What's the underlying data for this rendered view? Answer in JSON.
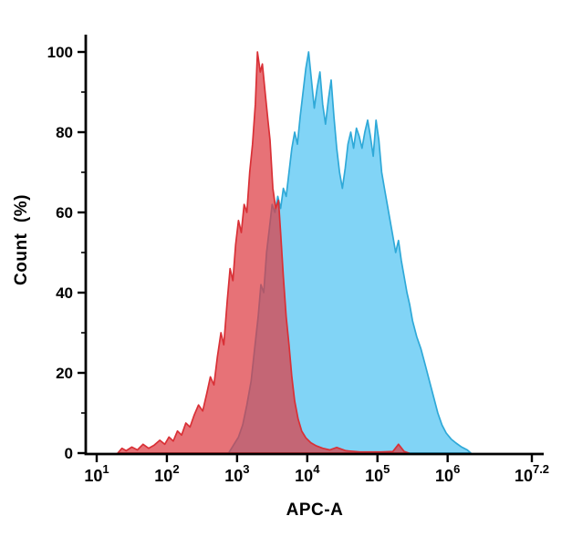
{
  "chart_data": {
    "type": "area",
    "subtype": "flow-cytometry-overlay-histogram",
    "title": "",
    "xlabel": "APC-A",
    "ylabel": "Count  (%)",
    "x_scale": "log10",
    "xlim_log": [
      1,
      7.2
    ],
    "ylim": [
      0,
      100
    ],
    "grid": false,
    "legend": "none",
    "background_color": "#ffffff",
    "axis_color": "#000000",
    "x_ticks": [
      {
        "log": 1,
        "label_base": "10",
        "label_exp": "1"
      },
      {
        "log": 2,
        "label_base": "10",
        "label_exp": "2"
      },
      {
        "log": 3,
        "label_base": "10",
        "label_exp": "3"
      },
      {
        "log": 4,
        "label_base": "10",
        "label_exp": "4"
      },
      {
        "log": 5,
        "label_base": "10",
        "label_exp": "5"
      },
      {
        "log": 6,
        "label_base": "10",
        "label_exp": "6"
      },
      {
        "log": 7.2,
        "label_base": "10",
        "label_exp": "7.2"
      }
    ],
    "y_ticks": [
      0,
      20,
      40,
      60,
      80,
      100
    ],
    "y_minor_ticks": [
      10,
      30,
      50,
      70,
      90
    ],
    "series": [
      {
        "id": "blue-population",
        "fill": "rgba(118,208,245,0.92)",
        "stroke": "#2fa9d8",
        "peak_log_x": 4.02,
        "peak_percent": 100,
        "points": [
          [
            2.88,
            0
          ],
          [
            2.95,
            2
          ],
          [
            3.02,
            4
          ],
          [
            3.08,
            7
          ],
          [
            3.14,
            12
          ],
          [
            3.2,
            18
          ],
          [
            3.25,
            26
          ],
          [
            3.3,
            34
          ],
          [
            3.34,
            42
          ],
          [
            3.38,
            40
          ],
          [
            3.42,
            50
          ],
          [
            3.46,
            56
          ],
          [
            3.5,
            62
          ],
          [
            3.54,
            60
          ],
          [
            3.58,
            64
          ],
          [
            3.62,
            61
          ],
          [
            3.66,
            66
          ],
          [
            3.7,
            64
          ],
          [
            3.74,
            70
          ],
          [
            3.78,
            76
          ],
          [
            3.82,
            80
          ],
          [
            3.86,
            77
          ],
          [
            3.9,
            84
          ],
          [
            3.94,
            90
          ],
          [
            3.98,
            96
          ],
          [
            4.02,
            100
          ],
          [
            4.06,
            93
          ],
          [
            4.1,
            86
          ],
          [
            4.14,
            91
          ],
          [
            4.18,
            95
          ],
          [
            4.22,
            87
          ],
          [
            4.26,
            82
          ],
          [
            4.3,
            88
          ],
          [
            4.34,
            93
          ],
          [
            4.38,
            84
          ],
          [
            4.42,
            76
          ],
          [
            4.46,
            70
          ],
          [
            4.5,
            66
          ],
          [
            4.54,
            71
          ],
          [
            4.58,
            77
          ],
          [
            4.62,
            80
          ],
          [
            4.66,
            76
          ],
          [
            4.7,
            81
          ],
          [
            4.74,
            79
          ],
          [
            4.78,
            76
          ],
          [
            4.82,
            80
          ],
          [
            4.86,
            83
          ],
          [
            4.9,
            79
          ],
          [
            4.94,
            74
          ],
          [
            4.98,
            83
          ],
          [
            5.02,
            78
          ],
          [
            5.06,
            70
          ],
          [
            5.1,
            66
          ],
          [
            5.14,
            62
          ],
          [
            5.18,
            58
          ],
          [
            5.22,
            54
          ],
          [
            5.26,
            50
          ],
          [
            5.3,
            53
          ],
          [
            5.34,
            48
          ],
          [
            5.38,
            44
          ],
          [
            5.42,
            40
          ],
          [
            5.46,
            37
          ],
          [
            5.5,
            33
          ],
          [
            5.56,
            29
          ],
          [
            5.62,
            26
          ],
          [
            5.68,
            22
          ],
          [
            5.74,
            18
          ],
          [
            5.8,
            14
          ],
          [
            5.86,
            10
          ],
          [
            5.92,
            7
          ],
          [
            5.98,
            5
          ],
          [
            6.05,
            3.5
          ],
          [
            6.12,
            2.5
          ],
          [
            6.2,
            1.5
          ],
          [
            6.28,
            0.8
          ],
          [
            6.33,
            0
          ]
        ]
      },
      {
        "id": "red-population",
        "fill": "rgba(222,60,66,0.72)",
        "stroke": "#d93036",
        "peak_log_x": 3.29,
        "peak_percent": 100,
        "points": [
          [
            1.3,
            0
          ],
          [
            1.36,
            1.2
          ],
          [
            1.42,
            0.6
          ],
          [
            1.5,
            1.5
          ],
          [
            1.58,
            0.8
          ],
          [
            1.66,
            2.2
          ],
          [
            1.74,
            1.2
          ],
          [
            1.82,
            2.0
          ],
          [
            1.9,
            3.2
          ],
          [
            1.97,
            2.2
          ],
          [
            2.03,
            4.0
          ],
          [
            2.09,
            3.0
          ],
          [
            2.15,
            5.5
          ],
          [
            2.21,
            4.5
          ],
          [
            2.27,
            7.5
          ],
          [
            2.33,
            6.5
          ],
          [
            2.39,
            9.5
          ],
          [
            2.45,
            12
          ],
          [
            2.51,
            10.5
          ],
          [
            2.57,
            15
          ],
          [
            2.62,
            19
          ],
          [
            2.67,
            17
          ],
          [
            2.72,
            24
          ],
          [
            2.77,
            30
          ],
          [
            2.81,
            27
          ],
          [
            2.86,
            38
          ],
          [
            2.9,
            46
          ],
          [
            2.94,
            43
          ],
          [
            2.98,
            52
          ],
          [
            3.02,
            58
          ],
          [
            3.06,
            55
          ],
          [
            3.1,
            62
          ],
          [
            3.14,
            60
          ],
          [
            3.18,
            70
          ],
          [
            3.22,
            77
          ],
          [
            3.26,
            87
          ],
          [
            3.29,
            100
          ],
          [
            3.33,
            95
          ],
          [
            3.36,
            97
          ],
          [
            3.4,
            90
          ],
          [
            3.44,
            83
          ],
          [
            3.47,
            78
          ],
          [
            3.51,
            66
          ],
          [
            3.55,
            61
          ],
          [
            3.59,
            63
          ],
          [
            3.62,
            55
          ],
          [
            3.66,
            44
          ],
          [
            3.7,
            34
          ],
          [
            3.74,
            27
          ],
          [
            3.78,
            19
          ],
          [
            3.82,
            13
          ],
          [
            3.87,
            8.5
          ],
          [
            3.92,
            5.5
          ],
          [
            3.98,
            3.8
          ],
          [
            4.05,
            2.6
          ],
          [
            4.13,
            1.8
          ],
          [
            4.22,
            1.2
          ],
          [
            4.32,
            0.8
          ],
          [
            4.42,
            1.4
          ],
          [
            4.55,
            0.6
          ],
          [
            4.75,
            0.3
          ],
          [
            5.05,
            0.3
          ],
          [
            5.22,
            0.4
          ],
          [
            5.3,
            2.2
          ],
          [
            5.38,
            0.4
          ],
          [
            5.45,
            0
          ]
        ]
      }
    ]
  }
}
